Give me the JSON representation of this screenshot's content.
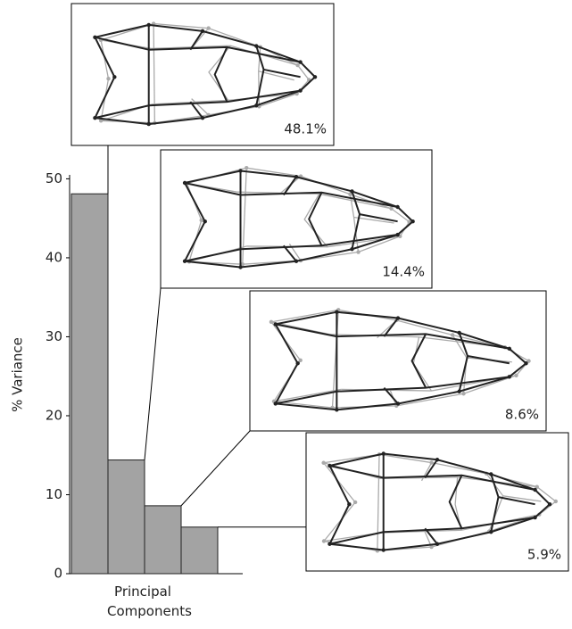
{
  "chart_data": {
    "type": "bar",
    "y_label": "% Variance",
    "x_label": "Principal Components",
    "values": [
      48.1,
      14.4,
      8.6,
      5.9
    ],
    "value_labels": [
      "48.1%",
      "14.4%",
      "8.6%",
      "5.9%"
    ],
    "color": "#a3a3a3",
    "ylim": [
      0,
      50.5
    ],
    "yticks": [
      0,
      10,
      20,
      30,
      40,
      50
    ]
  }
}
